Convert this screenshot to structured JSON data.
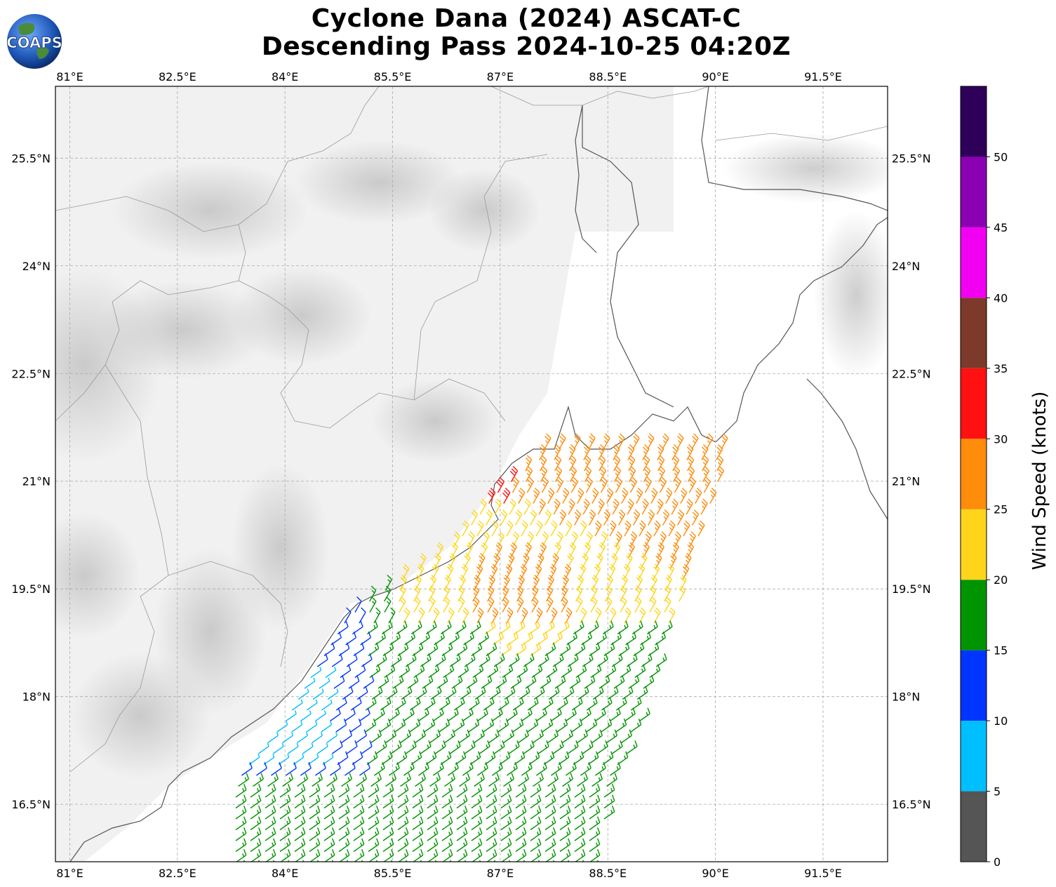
{
  "title": {
    "line1": "Cyclone Dana (2024) ASCAT-C",
    "line2": "Descending Pass 2024-10-25 04:20Z"
  },
  "logo": {
    "text": "COAPS",
    "icon": "globe-icon"
  },
  "map": {
    "projection": "PlateCarree",
    "lon_range": [
      80.8,
      92.4
    ],
    "lat_range": [
      15.7,
      26.5
    ],
    "lon_ticks": [
      "81°E",
      "82.5°E",
      "84°E",
      "85.5°E",
      "87°E",
      "88.5°E",
      "90°E",
      "91.5°E"
    ],
    "lat_ticks": [
      "25.5°N",
      "24°N",
      "22.5°N",
      "21°N",
      "19.5°N",
      "18°N",
      "16.5°N"
    ],
    "gridlines": true,
    "background": "grayscale terrain"
  },
  "colorbar": {
    "label": "Wind Speed (knots)",
    "ticks": [
      "0",
      "5",
      "10",
      "15",
      "20",
      "25",
      "30",
      "35",
      "40",
      "45",
      "50"
    ],
    "bins": [
      {
        "min": 0,
        "max": 5,
        "color": "#555555"
      },
      {
        "min": 5,
        "max": 10,
        "color": "#00BFFF"
      },
      {
        "min": 10,
        "max": 15,
        "color": "#0035FF"
      },
      {
        "min": 15,
        "max": 20,
        "color": "#009400"
      },
      {
        "min": 20,
        "max": 25,
        "color": "#FFD51B"
      },
      {
        "min": 25,
        "max": 30,
        "color": "#FF8C0B"
      },
      {
        "min": 30,
        "max": 35,
        "color": "#FF1111"
      },
      {
        "min": 35,
        "max": 40,
        "color": "#7D3A2A"
      },
      {
        "min": 40,
        "max": 45,
        "color": "#F200F2"
      },
      {
        "min": 45,
        "max": 50,
        "color": "#8B00B3"
      },
      {
        "min": 50,
        "max": 55,
        "color": "#2E0059"
      }
    ]
  }
}
